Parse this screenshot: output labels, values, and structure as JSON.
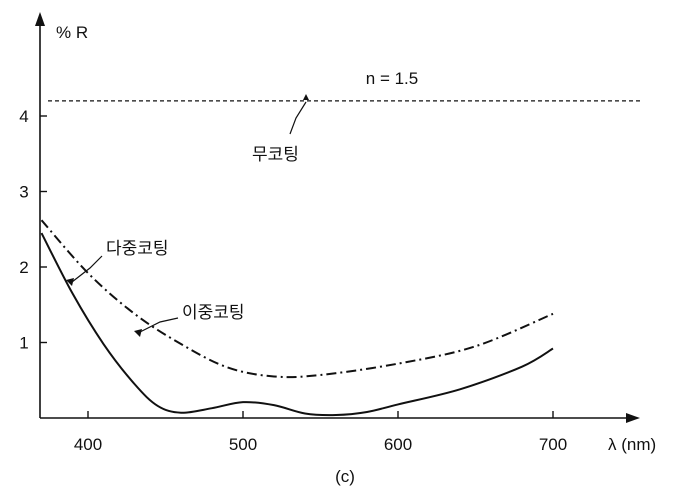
{
  "chart_data": {
    "type": "line",
    "title": "",
    "xlabel": "λ (nm)",
    "ylabel": "% R",
    "xlim": [
      370,
      720
    ],
    "ylim": [
      0,
      4.6
    ],
    "x_ticks": [
      400,
      500,
      600,
      700
    ],
    "y_ticks": [
      1,
      2,
      3,
      4
    ],
    "grid": false,
    "series": [
      {
        "name": "무코팅",
        "style": "dashed",
        "points": [
          [
            370,
            4.2
          ],
          [
            720,
            4.2
          ]
        ]
      },
      {
        "name": "이중코팅",
        "style": "dashdot",
        "points": [
          [
            370,
            2.62
          ],
          [
            400,
            1.92
          ],
          [
            430,
            1.38
          ],
          [
            460,
            0.98
          ],
          [
            490,
            0.67
          ],
          [
            520,
            0.55
          ],
          [
            550,
            0.57
          ],
          [
            600,
            0.72
          ],
          [
            650,
            0.95
          ],
          [
            700,
            1.38
          ]
        ]
      },
      {
        "name": "다중코팅",
        "style": "solid",
        "points": [
          [
            370,
            2.45
          ],
          [
            390,
            1.65
          ],
          [
            410,
            0.98
          ],
          [
            430,
            0.45
          ],
          [
            445,
            0.16
          ],
          [
            460,
            0.07
          ],
          [
            480,
            0.13
          ],
          [
            500,
            0.21
          ],
          [
            520,
            0.17
          ],
          [
            540,
            0.06
          ],
          [
            560,
            0.04
          ],
          [
            580,
            0.08
          ],
          [
            600,
            0.18
          ],
          [
            640,
            0.38
          ],
          [
            680,
            0.68
          ],
          [
            700,
            0.92
          ]
        ]
      }
    ],
    "annotations": [
      {
        "text": "n = 1.5",
        "kind": "label"
      },
      {
        "text": "무코팅",
        "kind": "leader",
        "target_series": "무코팅"
      },
      {
        "text": "다중코팅",
        "kind": "leader",
        "target_series": "다중코팅"
      },
      {
        "text": "이중코팅",
        "kind": "leader",
        "target_series": "이중코팅"
      }
    ],
    "caption": "(c)",
    "line_color": "#111111"
  }
}
